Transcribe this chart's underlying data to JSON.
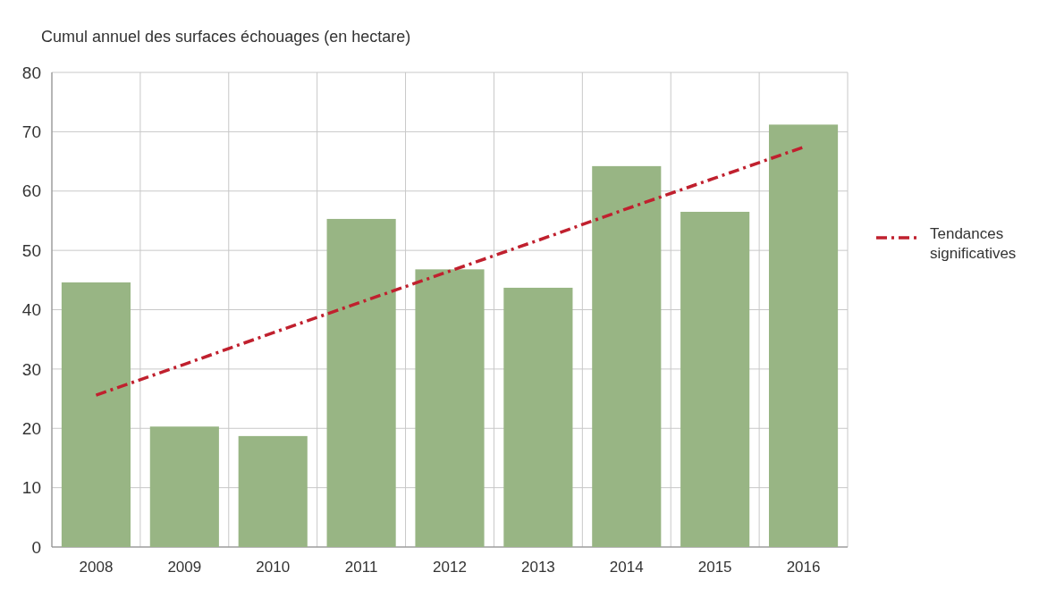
{
  "chart_data": {
    "type": "bar",
    "ylabel": "Cumul annuel des surfaces échouages (en hectare)",
    "categories": [
      "2008",
      "2009",
      "2010",
      "2011",
      "2012",
      "2013",
      "2014",
      "2015",
      "2016"
    ],
    "series": [
      {
        "color": "#98b584",
        "values": [
          44.6,
          20.3,
          18.7,
          55.3,
          46.8,
          43.7,
          64.2,
          56.5,
          71.2
        ]
      },
      {
        "type": "line",
        "name": "Tendances significatives",
        "color": "#c0202e",
        "line_style": "dashed",
        "values": [
          25.6,
          30.8,
          36.1,
          41.3,
          46.5,
          51.7,
          57.0,
          62.2,
          67.4
        ]
      }
    ],
    "ylim": [
      0,
      80
    ],
    "yticks": [
      0,
      10,
      20,
      30,
      40,
      50,
      60,
      70,
      80
    ],
    "grid": true,
    "legend": "right"
  }
}
